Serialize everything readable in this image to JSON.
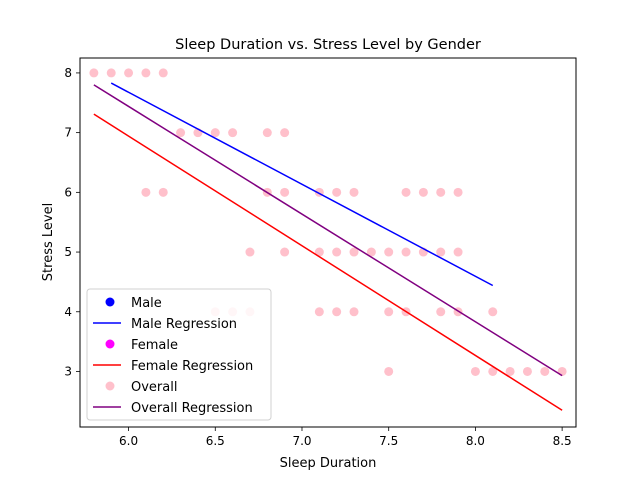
{
  "chart_data": {
    "type": "scatter",
    "title": "Sleep Duration vs. Stress Level by Gender",
    "xlabel": "Sleep Duration",
    "ylabel": "Stress Level",
    "xlim": [
      5.72,
      8.58
    ],
    "ylim": [
      2.07,
      8.25
    ],
    "xticks": [
      "6.0",
      "6.5",
      "7.0",
      "7.5",
      "8.0",
      "8.5"
    ],
    "yticks": [
      "3",
      "4",
      "5",
      "6",
      "7",
      "8"
    ],
    "grid": false,
    "legend_position": "lower-left",
    "legend": {
      "male": "Male",
      "male_regression": "Male Regression",
      "female": "Female",
      "female_regression": "Female Regression",
      "overall": "Overall",
      "overall_regression": "Overall Regression"
    },
    "colors": {
      "male": "#0000ff",
      "male_regression": "#0000ff",
      "female": "#ff00ff",
      "female_regression": "#ff0000",
      "overall": "#ffc0cb",
      "overall_regression": "#800080"
    },
    "overall_points": [
      [
        5.8,
        8
      ],
      [
        5.9,
        8
      ],
      [
        6.0,
        8
      ],
      [
        6.1,
        8
      ],
      [
        6.2,
        8
      ],
      [
        6.3,
        7
      ],
      [
        6.4,
        7
      ],
      [
        6.5,
        7
      ],
      [
        6.6,
        7
      ],
      [
        6.8,
        7
      ],
      [
        6.9,
        7
      ],
      [
        6.1,
        6
      ],
      [
        6.2,
        6
      ],
      [
        6.8,
        6
      ],
      [
        6.9,
        6
      ],
      [
        7.1,
        6
      ],
      [
        7.2,
        6
      ],
      [
        7.3,
        6
      ],
      [
        7.6,
        6
      ],
      [
        7.7,
        6
      ],
      [
        7.8,
        6
      ],
      [
        7.9,
        6
      ],
      [
        6.7,
        5
      ],
      [
        6.9,
        5
      ],
      [
        7.1,
        5
      ],
      [
        7.2,
        5
      ],
      [
        7.3,
        5
      ],
      [
        7.4,
        5
      ],
      [
        7.5,
        5
      ],
      [
        7.6,
        5
      ],
      [
        7.7,
        5
      ],
      [
        7.8,
        5
      ],
      [
        7.9,
        5
      ],
      [
        6.5,
        4
      ],
      [
        6.6,
        4
      ],
      [
        6.7,
        4
      ],
      [
        7.1,
        4
      ],
      [
        7.2,
        4
      ],
      [
        7.3,
        4
      ],
      [
        7.5,
        4
      ],
      [
        7.6,
        4
      ],
      [
        7.8,
        4
      ],
      [
        7.9,
        4
      ],
      [
        8.1,
        4
      ],
      [
        7.5,
        3
      ],
      [
        8.0,
        3
      ],
      [
        8.1,
        3
      ],
      [
        8.2,
        3
      ],
      [
        8.3,
        3
      ],
      [
        8.4,
        3
      ],
      [
        8.5,
        3
      ]
    ],
    "regressions": [
      {
        "key": "overall_regression",
        "x": [
          5.8,
          8.5
        ],
        "y": [
          7.8,
          2.93
        ]
      },
      {
        "key": "male_regression",
        "x": [
          5.9,
          8.1
        ],
        "y": [
          7.83,
          4.44
        ]
      },
      {
        "key": "female_regression",
        "x": [
          5.8,
          8.5
        ],
        "y": [
          7.31,
          2.35
        ]
      }
    ]
  }
}
